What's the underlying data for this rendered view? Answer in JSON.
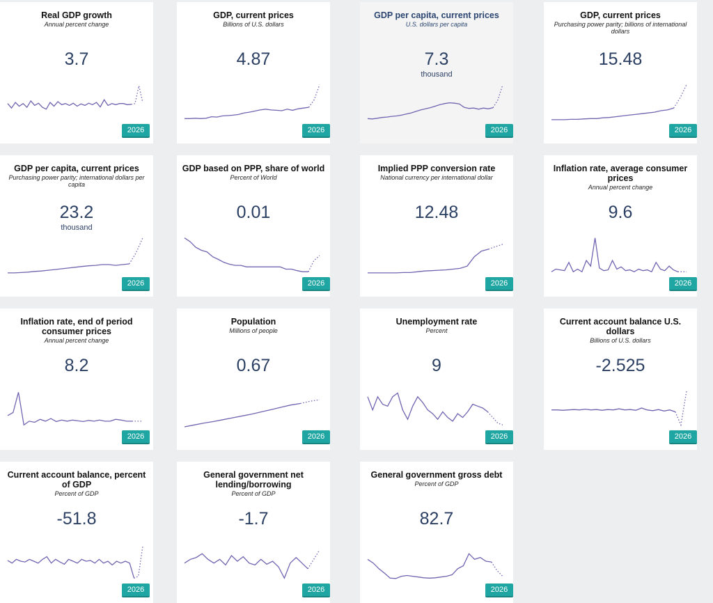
{
  "colors": {
    "accent": "#20a6a2",
    "line": "#6e64b0",
    "value": "#2b3f63"
  },
  "cards": [
    {
      "title": "Real GDP growth",
      "subtitle": "Annual percent change",
      "value": "3.7",
      "unit": "",
      "year": "2026",
      "solid": [
        0.45,
        0.33,
        0.48,
        0.38,
        0.45,
        0.35,
        0.52,
        0.4,
        0.46,
        0.35,
        0.3,
        0.48,
        0.38,
        0.5,
        0.42,
        0.45,
        0.4,
        0.46,
        0.38,
        0.44,
        0.4,
        0.46,
        0.42,
        0.48,
        0.36,
        0.55,
        0.4,
        0.45,
        0.42,
        0.45,
        0.45,
        0.42,
        0.43
      ],
      "dotted": [
        0.43,
        0.45,
        0.92,
        0.48
      ]
    },
    {
      "title": "GDP, current prices",
      "subtitle": "Billions of U.S. dollars",
      "value": "4.87",
      "unit": "",
      "year": "2026",
      "solid": [
        0.05,
        0.05,
        0.06,
        0.05,
        0.06,
        0.1,
        0.09,
        0.12,
        0.13,
        0.14,
        0.16,
        0.2,
        0.22,
        0.25,
        0.28,
        0.3,
        0.28,
        0.27,
        0.26,
        0.3,
        0.27,
        0.31,
        0.33,
        0.35
      ],
      "dotted": [
        0.35,
        0.55,
        0.95
      ]
    },
    {
      "title": "GDP per capita, current prices",
      "subtitle": "U.S. dollars per capita",
      "value": "7.3",
      "unit": "thousand",
      "year": "2026",
      "highlight": true,
      "solid": [
        0.05,
        0.04,
        0.06,
        0.08,
        0.09,
        0.11,
        0.12,
        0.14,
        0.17,
        0.2,
        0.24,
        0.28,
        0.31,
        0.34,
        0.38,
        0.42,
        0.45,
        0.47,
        0.46,
        0.44,
        0.35,
        0.32,
        0.33,
        0.3,
        0.33,
        0.31,
        0.34
      ],
      "dotted": [
        0.34,
        0.55,
        0.95
      ]
    },
    {
      "title": "GDP, current prices",
      "subtitle": "Purchasing power parity; billions of international dollars",
      "value": "15.48",
      "unit": "",
      "year": "2026",
      "solid": [
        0.02,
        0.02,
        0.02,
        0.03,
        0.03,
        0.04,
        0.05,
        0.05,
        0.07,
        0.08,
        0.1,
        0.12,
        0.14,
        0.16,
        0.18,
        0.2,
        0.22,
        0.26,
        0.28,
        0.33
      ],
      "dotted": [
        0.33,
        0.6,
        0.95
      ]
    },
    {
      "title": "GDP per capita, current prices",
      "subtitle": "Purchasing power parity; international dollars per capita",
      "value": "23.2",
      "unit": "thousand",
      "year": "2026",
      "solid": [
        0.02,
        0.02,
        0.03,
        0.04,
        0.06,
        0.07,
        0.09,
        0.11,
        0.13,
        0.15,
        0.17,
        0.19,
        0.21,
        0.22,
        0.24,
        0.24,
        0.22,
        0.24,
        0.26
      ],
      "dotted": [
        0.26,
        0.55,
        0.95
      ]
    },
    {
      "title": "GDP based on PPP, share of world",
      "subtitle": "Percent of World",
      "value": "0.01",
      "unit": "",
      "year": "2026",
      "solid": [
        0.95,
        0.85,
        0.7,
        0.62,
        0.58,
        0.45,
        0.38,
        0.3,
        0.25,
        0.22,
        0.22,
        0.18,
        0.18,
        0.18,
        0.18,
        0.18,
        0.18,
        0.18,
        0.12,
        0.12,
        0.08,
        0.05,
        0.05
      ],
      "dotted": [
        0.05,
        0.35,
        0.48
      ]
    },
    {
      "title": "Implied PPP conversion rate",
      "subtitle": "National currency per international dollar",
      "value": "12.48",
      "unit": "",
      "year": "2026",
      "solid": [
        0.02,
        0.02,
        0.02,
        0.02,
        0.02,
        0.03,
        0.03,
        0.05,
        0.07,
        0.08,
        0.09,
        0.1,
        0.12,
        0.14,
        0.2,
        0.45,
        0.6,
        0.65
      ],
      "dotted": [
        0.65,
        0.72,
        0.78
      ]
    },
    {
      "title": "Inflation rate, average consumer prices",
      "subtitle": "Annual percent change",
      "value": "9.6",
      "unit": "",
      "year": "2026",
      "solid": [
        0.05,
        0.12,
        0.1,
        0.08,
        0.3,
        0.05,
        0.12,
        0.05,
        0.35,
        0.2,
        0.95,
        0.15,
        0.08,
        0.1,
        0.35,
        0.12,
        0.18,
        0.08,
        0.1,
        0.05,
        0.12,
        0.08,
        0.1,
        0.05,
        0.3,
        0.12,
        0.08,
        0.2,
        0.1,
        0.05
      ],
      "dotted": [
        0.05,
        0.05,
        0.05
      ]
    },
    {
      "title": "Inflation rate, end of period consumer prices",
      "subtitle": "Annual percent change",
      "value": "8.2",
      "unit": "",
      "year": "2026",
      "solid": [
        0.3,
        0.38,
        0.92,
        0.05,
        0.15,
        0.12,
        0.2,
        0.15,
        0.22,
        0.14,
        0.18,
        0.15,
        0.18,
        0.16,
        0.14,
        0.17,
        0.15,
        0.18,
        0.15,
        0.15,
        0.2,
        0.18,
        0.15,
        0.15
      ],
      "dotted": [
        0.15,
        0.15,
        0.15
      ]
    },
    {
      "title": "Population",
      "subtitle": "Millions of people",
      "value": "0.67",
      "unit": "",
      "year": "2026",
      "solid": [
        0.0,
        0.05,
        0.1,
        0.14,
        0.19,
        0.24,
        0.29,
        0.34,
        0.4,
        0.46,
        0.52,
        0.58,
        0.62
      ],
      "dotted": [
        0.62,
        0.68,
        0.72
      ]
    },
    {
      "title": "Unemployment rate",
      "subtitle": "Percent",
      "value": "9",
      "unit": "",
      "year": "2026",
      "solid": [
        0.8,
        0.45,
        0.8,
        0.6,
        0.55,
        0.8,
        0.9,
        0.45,
        0.2,
        0.55,
        0.8,
        0.65,
        0.45,
        0.35,
        0.2,
        0.4,
        0.25,
        0.15,
        0.35,
        0.25,
        0.4,
        0.6,
        0.55,
        0.5,
        0.4
      ],
      "dotted": [
        0.4,
        0.25,
        0.1,
        0.05
      ]
    },
    {
      "title": "Current account balance U.S. dollars",
      "subtitle": "Billions of U.S. dollars",
      "value": "-2.525",
      "unit": "",
      "year": "2026",
      "solid": [
        0.45,
        0.45,
        0.44,
        0.45,
        0.46,
        0.45,
        0.47,
        0.45,
        0.46,
        0.44,
        0.46,
        0.45,
        0.48,
        0.45,
        0.46,
        0.44,
        0.5,
        0.45,
        0.43,
        0.46,
        0.42,
        0.45,
        0.4
      ],
      "dotted": [
        0.4,
        0.05,
        0.95
      ]
    },
    {
      "title": "Current account balance, percent of GDP",
      "subtitle": "Percent of GDP",
      "value": "-51.8",
      "unit": "",
      "year": "2026",
      "solid": [
        0.52,
        0.45,
        0.55,
        0.5,
        0.48,
        0.55,
        0.5,
        0.45,
        0.55,
        0.62,
        0.45,
        0.55,
        0.48,
        0.42,
        0.55,
        0.5,
        0.45,
        0.55,
        0.5,
        0.52,
        0.45,
        0.55,
        0.45,
        0.5,
        0.4,
        0.5,
        0.45,
        0.5,
        0.45,
        0.05
      ],
      "dotted": [
        0.05,
        0.1,
        0.9
      ]
    },
    {
      "title": "General government net lending/borrowing",
      "subtitle": "Percent of GDP",
      "value": "-1.7",
      "unit": "",
      "year": "2026",
      "solid": [
        0.45,
        0.55,
        0.6,
        0.7,
        0.55,
        0.45,
        0.55,
        0.4,
        0.65,
        0.5,
        0.62,
        0.45,
        0.4,
        0.55,
        0.42,
        0.5,
        0.35,
        0.05,
        0.45,
        0.6,
        0.45,
        0.3
      ],
      "dotted": [
        0.3,
        0.55,
        0.8
      ]
    },
    {
      "title": "General government gross debt",
      "subtitle": "Percent of GDP",
      "value": "82.7",
      "unit": "",
      "year": "2026",
      "solid": [
        0.55,
        0.45,
        0.3,
        0.18,
        0.05,
        0.04,
        0.1,
        0.12,
        0.1,
        0.08,
        0.06,
        0.05,
        0.06,
        0.08,
        0.1,
        0.14,
        0.3,
        0.38,
        0.7,
        0.55,
        0.6,
        0.5,
        0.48
      ],
      "dotted": [
        0.48,
        0.25,
        0.1
      ]
    }
  ]
}
